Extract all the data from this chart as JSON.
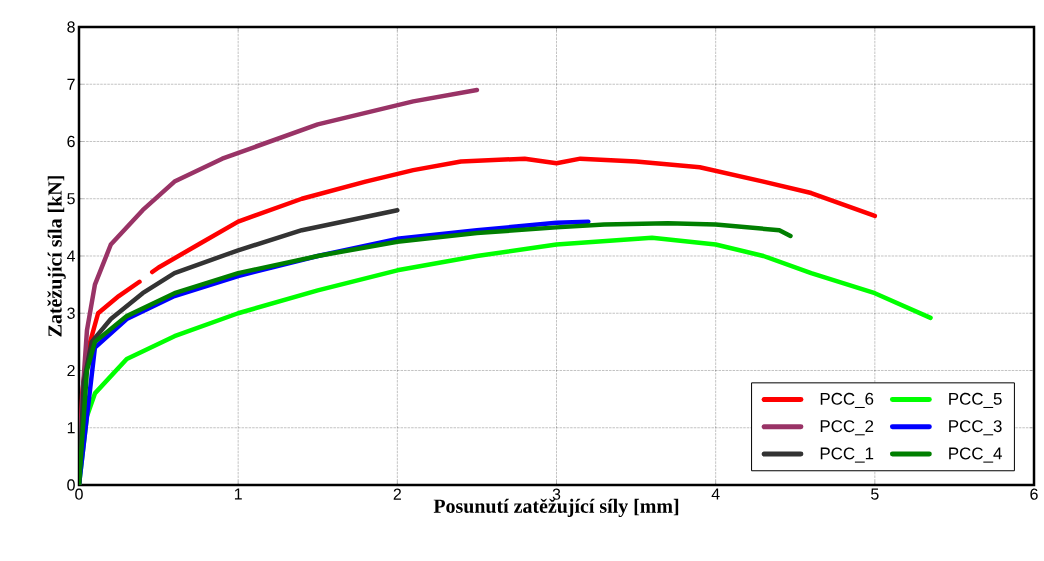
{
  "chart_data": {
    "type": "line",
    "xlabel": "Posunutí zatěžující síly [mm]",
    "ylabel": "Zatěžující síla [kN]",
    "xlim": [
      0,
      6
    ],
    "ylim": [
      0,
      8
    ],
    "xticks": [
      0,
      1,
      2,
      3,
      4,
      5,
      6
    ],
    "yticks": [
      0,
      1,
      2,
      3,
      4,
      5,
      6,
      7,
      8
    ],
    "grid": true,
    "legend": "bottom right",
    "marker": "none",
    "line_style": "solid",
    "series": [
      {
        "name": "PCC_6",
        "color": "#ff0000",
        "x": [
          0,
          0.02,
          0.05,
          0.12,
          0.25,
          0.38,
          0.42,
          0.46,
          0.5,
          0.75,
          1.0,
          1.4,
          1.8,
          2.1,
          2.4,
          2.8,
          3.0,
          3.15,
          3.5,
          3.9,
          4.3,
          4.6,
          5.0
        ],
        "values": [
          0,
          1.6,
          2.3,
          3.0,
          3.3,
          3.55,
          null,
          3.72,
          3.8,
          4.2,
          4.6,
          5.0,
          5.3,
          5.5,
          5.65,
          5.7,
          5.62,
          5.7,
          5.65,
          5.55,
          5.3,
          5.1,
          4.7
        ]
      },
      {
        "name": "PCC_5",
        "color": "#00ff00",
        "x": [
          0,
          0.05,
          0.1,
          0.3,
          0.6,
          1.0,
          1.5,
          2.0,
          2.5,
          3.0,
          3.6,
          4.0,
          4.3,
          4.6,
          5.0,
          5.35
        ],
        "values": [
          0,
          1.2,
          1.6,
          2.2,
          2.6,
          3.0,
          3.4,
          3.75,
          4.0,
          4.2,
          4.32,
          4.2,
          4.0,
          3.7,
          3.35,
          2.92
        ]
      },
      {
        "name": "PCC_2",
        "color": "#993366",
        "x": [
          0,
          0.02,
          0.05,
          0.1,
          0.2,
          0.4,
          0.6,
          0.9,
          1.2,
          1.5,
          1.8,
          2.1,
          2.5
        ],
        "values": [
          0,
          1.5,
          2.7,
          3.5,
          4.2,
          4.8,
          5.3,
          5.7,
          6.0,
          6.3,
          6.5,
          6.7,
          6.9
        ]
      },
      {
        "name": "PCC_3",
        "color": "#0000ff",
        "x": [
          0,
          0.1,
          0.3,
          0.6,
          1.0,
          1.5,
          2.0,
          2.5,
          3.0,
          3.2
        ],
        "values": [
          0,
          2.4,
          2.9,
          3.3,
          3.65,
          4.0,
          4.3,
          4.45,
          4.58,
          4.6
        ]
      },
      {
        "name": "PCC_1",
        "color": "#333333",
        "x": [
          0,
          0.03,
          0.08,
          0.2,
          0.4,
          0.6,
          1.0,
          1.4,
          2.0
        ],
        "values": [
          0,
          1.8,
          2.5,
          2.9,
          3.35,
          3.7,
          4.1,
          4.45,
          4.8
        ]
      },
      {
        "name": "PCC_4",
        "color": "#007f00",
        "x": [
          0,
          0.05,
          0.1,
          0.3,
          0.6,
          1.0,
          1.5,
          2.0,
          2.5,
          3.0,
          3.3,
          3.7,
          4.0,
          4.4,
          4.47
        ],
        "values": [
          0,
          2.0,
          2.5,
          2.95,
          3.35,
          3.7,
          4.0,
          4.25,
          4.4,
          4.5,
          4.55,
          4.57,
          4.55,
          4.45,
          4.35
        ]
      }
    ]
  }
}
